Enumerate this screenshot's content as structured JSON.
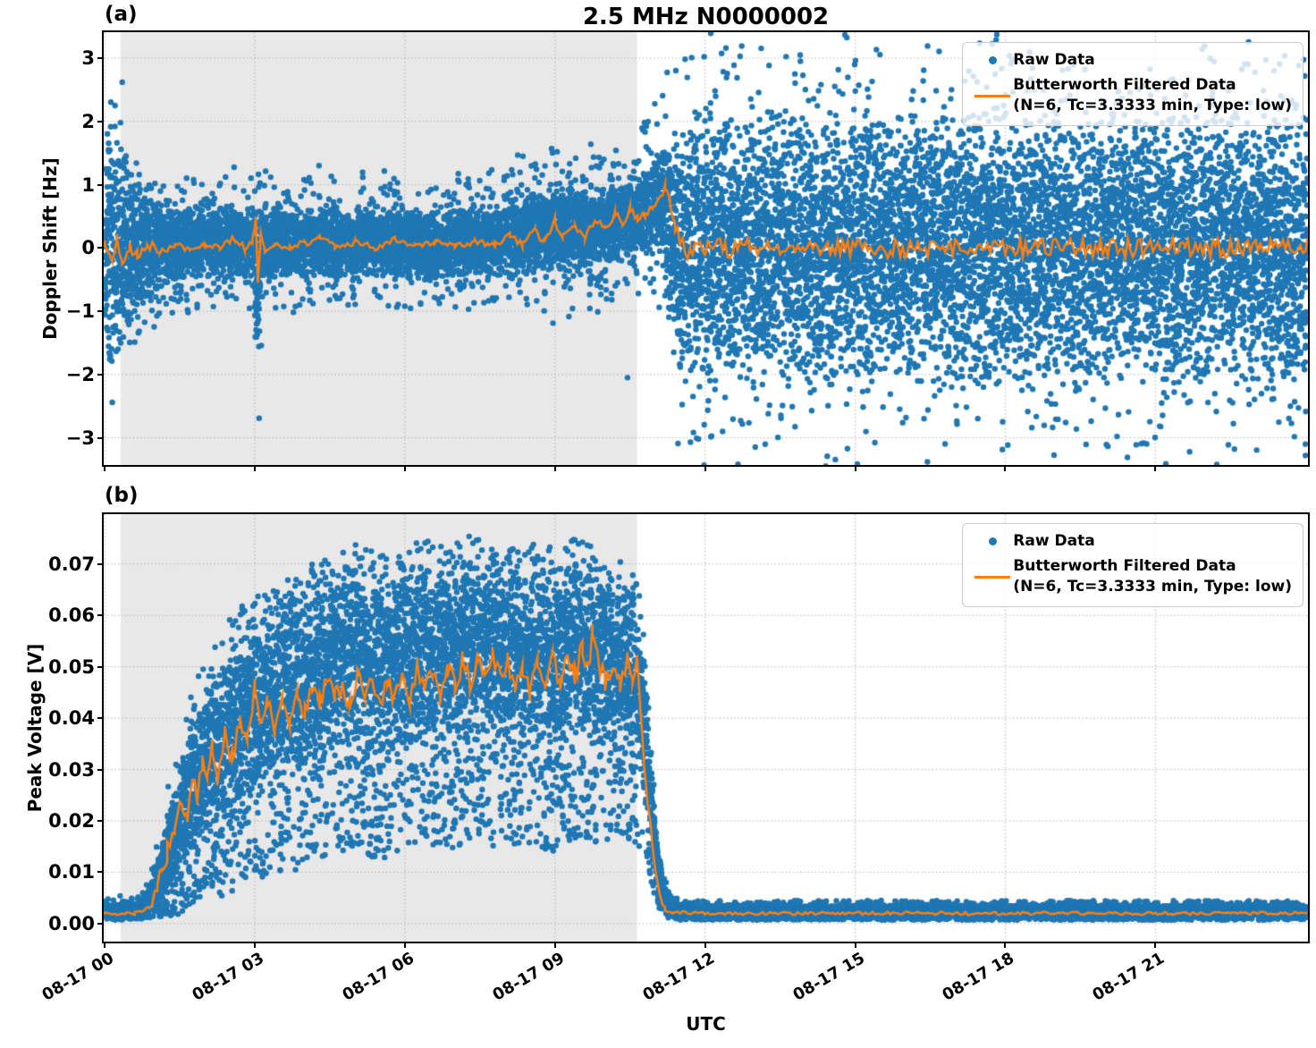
{
  "title": "2.5 MHz N0000002",
  "xlabel": "UTC",
  "panels": {
    "a": {
      "tag": "(a)",
      "ylabel": "Doppler Shift [Hz]"
    },
    "b": {
      "tag": "(b)",
      "ylabel": "Peak Voltage [V]"
    }
  },
  "legend": {
    "raw_label": "Raw Data",
    "filtered_label": "Butterworth Filtered Data",
    "filtered_sublabel": "(N=6, Tc=3.3333 min, Type: low)"
  },
  "colors": {
    "raw": "#1f77b4",
    "filtered": "#ff7f0e",
    "shade": "#e8e8e8",
    "grid": "#b0b0b0",
    "text": "#000000"
  },
  "chart_data": [
    {
      "type": "scatter",
      "panel": "a",
      "ylabel": "Doppler Shift [Hz]",
      "series": [
        "Raw Data",
        "Butterworth Filtered Data (N=6, Tc=3.3333 min, Type: low)"
      ],
      "ylim": [
        -3.43,
        3.41
      ],
      "ytick_values": [
        3,
        2,
        1,
        0,
        -1,
        -2,
        -3
      ],
      "ytick_labels": [
        "3",
        "2",
        "1",
        "0",
        "−1",
        "−2",
        "−3"
      ],
      "xlim_hours": [
        -0.02,
        24.05
      ],
      "xtick_hours": [
        0,
        3,
        6,
        9,
        12,
        15,
        18,
        21
      ],
      "xtick_labels": [
        "08-17 00",
        "08-17 03",
        "08-17 06",
        "08-17 09",
        "08-17 12",
        "08-17 15",
        "08-17 18",
        "08-17 21"
      ],
      "show_xtick_labels": false,
      "grid": true,
      "shaded_region_hours": [
        0.32,
        10.64
      ],
      "seed": 42,
      "n_points": 15000,
      "scatter_t_range": [
        0,
        24.04
      ],
      "distribution": "symmetric",
      "scatter_envelope_t_center_dense_max": [
        [
          0,
          0.1,
          2.2,
          2.45
        ],
        [
          0.2,
          0,
          2.0,
          2.3
        ],
        [
          0.45,
          0,
          1.5,
          1.85
        ],
        [
          0.7,
          0,
          1.05,
          1.45
        ],
        [
          1.0,
          0,
          0.75,
          1.15
        ],
        [
          1.4,
          0.03,
          0.58,
          0.95
        ],
        [
          2.0,
          0.08,
          0.55,
          0.9
        ],
        [
          2.55,
          0.12,
          0.6,
          1.0
        ],
        [
          2.95,
          0.08,
          0.58,
          1.0
        ],
        [
          3.02,
          -0.4,
          1.3,
          2.0
        ],
        [
          3.07,
          -0.55,
          1.35,
          2.1
        ],
        [
          3.15,
          0.05,
          0.65,
          1.1
        ],
        [
          3.5,
          0.08,
          0.55,
          0.9
        ],
        [
          4.3,
          0.1,
          0.58,
          0.95
        ],
        [
          5.0,
          0.05,
          0.55,
          0.9
        ],
        [
          5.8,
          0.1,
          0.58,
          0.95
        ],
        [
          6.5,
          0.05,
          0.55,
          0.9
        ],
        [
          7.3,
          0.08,
          0.55,
          0.92
        ],
        [
          8.0,
          0.15,
          0.6,
          1.0
        ],
        [
          8.6,
          0.22,
          0.62,
          1.1
        ],
        [
          9.0,
          0.3,
          0.65,
          1.2
        ],
        [
          9.5,
          0.28,
          0.62,
          1.15
        ],
        [
          10.0,
          0.35,
          0.62,
          1.15
        ],
        [
          10.45,
          0.5,
          0.6,
          1.1
        ],
        [
          10.8,
          0.58,
          0.68,
          1.2
        ],
        [
          11.05,
          0.68,
          0.85,
          1.4
        ],
        [
          11.25,
          0.45,
          1.5,
          2.1
        ],
        [
          11.5,
          0.05,
          2.1,
          2.7
        ],
        [
          11.9,
          0,
          2.25,
          2.95
        ],
        [
          24.04,
          0,
          2.25,
          2.95
        ]
      ],
      "extra_outliers": [
        [
          0.35,
          2.62
        ],
        [
          13.9,
          3.05
        ],
        [
          10.45,
          -2.05
        ],
        [
          12.35,
          -2.9
        ],
        [
          24.0,
          -3.1
        ],
        [
          24.0,
          -3.28
        ]
      ],
      "filtered_line": [
        [
          0,
          0.05
        ],
        [
          0.15,
          -0.2
        ],
        [
          0.25,
          0.15
        ],
        [
          0.35,
          -0.3
        ],
        [
          0.5,
          0
        ],
        [
          0.65,
          -0.12
        ],
        [
          0.85,
          0.05
        ],
        [
          1.1,
          -0.04
        ],
        [
          1.4,
          0.03
        ],
        [
          1.7,
          0
        ],
        [
          2.0,
          0.06
        ],
        [
          2.3,
          -0.02
        ],
        [
          2.6,
          0.16
        ],
        [
          2.8,
          0
        ],
        [
          2.95,
          0.1
        ],
        [
          3.02,
          0.48
        ],
        [
          3.06,
          -0.55
        ],
        [
          3.12,
          0.25
        ],
        [
          3.2,
          -0.05
        ],
        [
          3.4,
          0.06
        ],
        [
          3.7,
          0
        ],
        [
          4.0,
          0.08
        ],
        [
          4.3,
          0.16
        ],
        [
          4.6,
          0.03
        ],
        [
          5.0,
          0.09
        ],
        [
          5.4,
          0
        ],
        [
          5.8,
          0.13
        ],
        [
          6.2,
          0.03
        ],
        [
          6.6,
          0.09
        ],
        [
          7.0,
          0.02
        ],
        [
          7.4,
          0.1
        ],
        [
          7.8,
          0.05
        ],
        [
          8.1,
          0.2
        ],
        [
          8.35,
          0.08
        ],
        [
          8.6,
          0.26
        ],
        [
          8.8,
          0.1
        ],
        [
          9.0,
          0.42
        ],
        [
          9.15,
          0.2
        ],
        [
          9.4,
          0.35
        ],
        [
          9.6,
          0.18
        ],
        [
          9.8,
          0.45
        ],
        [
          10.0,
          0.28
        ],
        [
          10.2,
          0.55
        ],
        [
          10.35,
          0.38
        ],
        [
          10.5,
          0.6
        ],
        [
          10.65,
          0.45
        ],
        [
          10.8,
          0.55
        ],
        [
          10.95,
          0.68
        ],
        [
          11.1,
          0.8
        ],
        [
          11.2,
          0.95
        ],
        [
          11.3,
          0.72
        ],
        [
          11.4,
          0.3
        ],
        [
          11.5,
          0.05
        ],
        [
          11.7,
          -0.05
        ],
        [
          12.0,
          0
        ],
        [
          24.04,
          0
        ]
      ],
      "line_noise_segments": [
        [
          0,
          1.0,
          0.09
        ],
        [
          1.0,
          8.0,
          0.055
        ],
        [
          8.0,
          11.4,
          0.07
        ],
        [
          11.4,
          24.05,
          0.16
        ]
      ]
    },
    {
      "type": "scatter",
      "panel": "b",
      "ylabel": "Peak Voltage [V]",
      "series": [
        "Raw Data",
        "Butterworth Filtered Data (N=6, Tc=3.3333 min, Type: low)"
      ],
      "ylim": [
        -0.0035,
        0.0797
      ],
      "ytick_values": [
        0.07,
        0.06,
        0.05,
        0.04,
        0.03,
        0.02,
        0.01,
        0.0
      ],
      "ytick_labels": [
        "0.07",
        "0.06",
        "0.05",
        "0.04",
        "0.03",
        "0.02",
        "0.01",
        "0.00"
      ],
      "xlim_hours": [
        -0.02,
        24.05
      ],
      "xtick_hours": [
        0,
        3,
        6,
        9,
        12,
        15,
        18,
        21
      ],
      "xtick_labels": [
        "08-17 00",
        "08-17 03",
        "08-17 06",
        "08-17 09",
        "08-17 12",
        "08-17 15",
        "08-17 18",
        "08-17 21"
      ],
      "show_xtick_labels": true,
      "grid": true,
      "shaded_region_hours": [
        0.32,
        10.64
      ],
      "seed": 1234,
      "n_points": 16000,
      "scatter_t_range": [
        0,
        24.04
      ],
      "distribution": "band",
      "scatter_envelope_t_lo_hi_omax": [
        [
          0,
          0.001,
          0.0035,
          0.005
        ],
        [
          0.7,
          0.001,
          0.004,
          0.006
        ],
        [
          0.9,
          0.0012,
          0.007,
          0.011
        ],
        [
          1.1,
          0.0015,
          0.014,
          0.02
        ],
        [
          1.3,
          0.002,
          0.022,
          0.028
        ],
        [
          1.6,
          0.003,
          0.033,
          0.042
        ],
        [
          2.0,
          0.005,
          0.044,
          0.052
        ],
        [
          2.5,
          0.008,
          0.053,
          0.06
        ],
        [
          3.0,
          0.013,
          0.058,
          0.064
        ],
        [
          3.5,
          0.012,
          0.06,
          0.066
        ],
        [
          4.0,
          0.016,
          0.064,
          0.07
        ],
        [
          4.5,
          0.018,
          0.067,
          0.072
        ],
        [
          5.0,
          0.02,
          0.069,
          0.0745
        ],
        [
          5.5,
          0.018,
          0.066,
          0.072
        ],
        [
          6.0,
          0.02,
          0.068,
          0.074
        ],
        [
          6.5,
          0.022,
          0.069,
          0.0745
        ],
        [
          7.0,
          0.02,
          0.07,
          0.0755
        ],
        [
          7.5,
          0.022,
          0.071,
          0.076
        ],
        [
          8.0,
          0.02,
          0.068,
          0.0735
        ],
        [
          8.5,
          0.022,
          0.069,
          0.0745
        ],
        [
          9.0,
          0.02,
          0.068,
          0.0735
        ],
        [
          9.5,
          0.024,
          0.071,
          0.0755
        ],
        [
          10.0,
          0.022,
          0.066,
          0.0715
        ],
        [
          10.4,
          0.024,
          0.0655,
          0.0705
        ],
        [
          10.64,
          0.022,
          0.063,
          0.068
        ],
        [
          10.75,
          0.018,
          0.054,
          0.059
        ],
        [
          10.85,
          0.013,
          0.04,
          0.045
        ],
        [
          10.95,
          0.009,
          0.027,
          0.031
        ],
        [
          11.05,
          0.005,
          0.016,
          0.019
        ],
        [
          11.15,
          0.003,
          0.009,
          0.012
        ],
        [
          11.3,
          0.0012,
          0.0045,
          0.006
        ],
        [
          11.5,
          0.001,
          0.0035,
          0.0045
        ],
        [
          24.04,
          0.001,
          0.0035,
          0.0045
        ]
      ],
      "extra_outliers": [],
      "filtered_line": [
        [
          0,
          0.002
        ],
        [
          0.6,
          0.002
        ],
        [
          0.8,
          0.0028
        ],
        [
          0.95,
          0.004
        ],
        [
          1.05,
          0.007
        ],
        [
          1.15,
          0.01
        ],
        [
          1.25,
          0.014
        ],
        [
          1.4,
          0.019
        ],
        [
          1.55,
          0.024
        ],
        [
          1.65,
          0.021
        ],
        [
          1.75,
          0.028
        ],
        [
          1.85,
          0.024
        ],
        [
          1.95,
          0.031
        ],
        [
          2.05,
          0.027
        ],
        [
          2.15,
          0.034
        ],
        [
          2.25,
          0.029
        ],
        [
          2.4,
          0.037
        ],
        [
          2.55,
          0.032
        ],
        [
          2.7,
          0.04
        ],
        [
          2.85,
          0.035
        ],
        [
          3.0,
          0.046
        ],
        [
          3.1,
          0.04
        ],
        [
          3.25,
          0.044
        ],
        [
          3.4,
          0.036
        ],
        [
          3.55,
          0.043
        ],
        [
          3.7,
          0.038
        ],
        [
          3.85,
          0.045
        ],
        [
          4.0,
          0.041
        ],
        [
          4.15,
          0.047
        ],
        [
          4.3,
          0.043
        ],
        [
          4.45,
          0.048
        ],
        [
          4.6,
          0.044
        ],
        [
          4.75,
          0.047
        ],
        [
          4.9,
          0.043
        ],
        [
          5.05,
          0.048
        ],
        [
          5.2,
          0.044
        ],
        [
          5.35,
          0.047
        ],
        [
          5.5,
          0.042
        ],
        [
          5.65,
          0.047
        ],
        [
          5.8,
          0.043
        ],
        [
          5.95,
          0.049
        ],
        [
          6.1,
          0.044
        ],
        [
          6.25,
          0.05
        ],
        [
          6.4,
          0.045
        ],
        [
          6.55,
          0.049
        ],
        [
          6.7,
          0.044
        ],
        [
          6.85,
          0.05
        ],
        [
          7.0,
          0.046
        ],
        [
          7.15,
          0.051
        ],
        [
          7.3,
          0.047
        ],
        [
          7.45,
          0.052
        ],
        [
          7.6,
          0.048
        ],
        [
          7.75,
          0.053
        ],
        [
          7.9,
          0.048
        ],
        [
          8.05,
          0.051
        ],
        [
          8.2,
          0.046
        ],
        [
          8.35,
          0.05
        ],
        [
          8.5,
          0.045
        ],
        [
          8.65,
          0.05
        ],
        [
          8.8,
          0.046
        ],
        [
          8.95,
          0.052
        ],
        [
          9.1,
          0.047
        ],
        [
          9.25,
          0.053
        ],
        [
          9.4,
          0.048
        ],
        [
          9.55,
          0.054
        ],
        [
          9.68,
          0.049
        ],
        [
          9.75,
          0.058
        ],
        [
          9.85,
          0.051
        ],
        [
          10.0,
          0.047
        ],
        [
          10.15,
          0.051
        ],
        [
          10.3,
          0.046
        ],
        [
          10.45,
          0.051
        ],
        [
          10.55,
          0.047
        ],
        [
          10.64,
          0.052
        ],
        [
          10.7,
          0.043
        ],
        [
          10.78,
          0.031
        ],
        [
          10.85,
          0.024
        ],
        [
          10.92,
          0.018
        ],
        [
          11.0,
          0.011
        ],
        [
          11.1,
          0.005
        ],
        [
          11.2,
          0.003
        ],
        [
          11.35,
          0.0022
        ],
        [
          12.0,
          0.002
        ],
        [
          24.04,
          0.002
        ]
      ],
      "line_noise_segments": [
        [
          0,
          0.9,
          0.0003
        ],
        [
          0.9,
          10.64,
          0.0021
        ],
        [
          10.64,
          11.3,
          0.0006
        ],
        [
          11.3,
          24.05,
          0.0003
        ]
      ]
    }
  ]
}
